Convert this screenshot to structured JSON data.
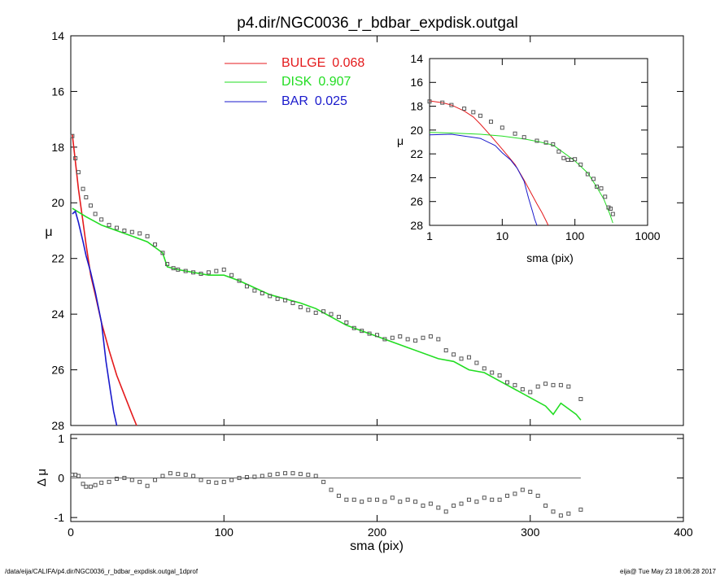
{
  "title": "p4.dir/NGC0036_r_bdbar_expdisk.outgal",
  "footer_left": "/data/eija/CALIFA/p4.dir/NGC0036_r_bdbar_expdisk.outgal_1dprof",
  "footer_right": "eija@  Tue May 23 18:06:28 2017",
  "colors": {
    "bulge": "#e41a1c",
    "disk": "#22dd22",
    "bar": "#1a1acc",
    "data": "#555555"
  },
  "chart_data": [
    {
      "id": "main",
      "type": "line",
      "xlabel": "",
      "ylabel": "μ",
      "xlim": [
        0,
        400
      ],
      "ylim": [
        28,
        14
      ],
      "yticks": [
        14,
        16,
        18,
        20,
        22,
        24,
        26,
        28
      ],
      "xticks": [
        0,
        100,
        200,
        300,
        400
      ],
      "legend": [
        {
          "name": "BULGE",
          "value": "0.068",
          "color": "#e41a1c"
        },
        {
          "name": "DISK",
          "value": "0.907",
          "color": "#22dd22"
        },
        {
          "name": "BAR",
          "value": "0.025",
          "color": "#1a1acc"
        }
      ],
      "series": [
        {
          "name": "BULGE",
          "x": [
            1,
            3,
            5,
            8,
            10,
            13,
            16,
            20,
            25,
            30,
            35,
            40,
            43
          ],
          "y": [
            17.55,
            18.5,
            19.5,
            20.7,
            21.5,
            22.6,
            23.3,
            24.3,
            25.3,
            26.2,
            26.9,
            27.6,
            28.0
          ]
        },
        {
          "name": "DISK",
          "x": [
            1,
            10,
            20,
            30,
            40,
            50,
            55,
            60,
            63,
            70,
            80,
            90,
            100,
            110,
            130,
            150,
            160,
            170,
            180,
            190,
            200,
            220,
            240,
            250,
            260,
            270,
            280,
            290,
            300,
            310,
            315,
            320,
            325,
            330,
            333
          ],
          "y": [
            20.2,
            20.5,
            20.8,
            21.0,
            21.2,
            21.4,
            21.6,
            21.8,
            22.3,
            22.4,
            22.5,
            22.6,
            22.6,
            22.8,
            23.3,
            23.6,
            23.8,
            24.1,
            24.4,
            24.6,
            24.8,
            25.2,
            25.6,
            25.7,
            26.0,
            26.1,
            26.4,
            26.7,
            27.0,
            27.3,
            27.6,
            27.2,
            27.4,
            27.6,
            27.8
          ]
        },
        {
          "name": "BAR",
          "x": [
            1,
            3,
            5,
            8,
            10,
            13,
            16,
            20,
            23,
            26,
            28,
            30
          ],
          "y": [
            20.4,
            20.3,
            20.7,
            21.4,
            21.9,
            22.5,
            23.2,
            24.3,
            25.7,
            26.8,
            27.5,
            28.0
          ]
        },
        {
          "name": "data",
          "x": [
            1,
            3,
            5,
            8,
            10,
            13,
            16,
            20,
            25,
            30,
            35,
            40,
            45,
            50,
            55,
            60,
            63,
            67,
            70,
            75,
            80,
            85,
            90,
            95,
            100,
            105,
            110,
            115,
            120,
            125,
            130,
            135,
            140,
            145,
            150,
            155,
            160,
            165,
            170,
            175,
            180,
            185,
            190,
            195,
            200,
            205,
            210,
            215,
            220,
            225,
            230,
            235,
            240,
            245,
            250,
            255,
            260,
            265,
            270,
            275,
            280,
            285,
            290,
            295,
            300,
            305,
            310,
            315,
            320,
            325,
            333
          ],
          "y": [
            17.6,
            18.4,
            18.9,
            19.5,
            19.8,
            20.1,
            20.4,
            20.6,
            20.8,
            20.9,
            21.0,
            21.05,
            21.1,
            21.2,
            21.5,
            21.8,
            22.2,
            22.35,
            22.4,
            22.45,
            22.5,
            22.55,
            22.5,
            22.45,
            22.4,
            22.6,
            22.8,
            23.0,
            23.15,
            23.25,
            23.35,
            23.45,
            23.5,
            23.6,
            23.75,
            23.85,
            23.95,
            23.9,
            24.0,
            24.1,
            24.3,
            24.5,
            24.6,
            24.7,
            24.75,
            24.9,
            24.85,
            24.8,
            24.9,
            24.95,
            24.85,
            24.8,
            24.9,
            25.3,
            25.45,
            25.6,
            25.55,
            25.75,
            25.95,
            26.1,
            26.2,
            26.45,
            26.55,
            26.7,
            26.8,
            26.6,
            26.5,
            26.55,
            26.55,
            26.6,
            27.05
          ]
        }
      ]
    },
    {
      "id": "inset",
      "type": "line",
      "xlabel": "sma (pix)",
      "ylabel": "μ",
      "xscale": "log",
      "xlim": [
        1,
        1000
      ],
      "ylim": [
        28,
        14
      ],
      "yticks": [
        14,
        16,
        18,
        20,
        22,
        24,
        26,
        28
      ],
      "xticks": [
        1,
        10,
        100,
        1000
      ],
      "series": [
        {
          "name": "BULGE",
          "x": [
            1,
            1.5,
            2,
            3,
            4,
            5,
            7,
            10,
            15,
            20,
            25,
            30,
            35,
            40,
            43
          ],
          "y": [
            17.55,
            17.7,
            17.9,
            18.4,
            18.9,
            19.5,
            20.5,
            21.6,
            22.9,
            24.2,
            25.3,
            26.2,
            26.9,
            27.6,
            28.0
          ]
        },
        {
          "name": "DISK",
          "x": [
            1,
            2,
            5,
            10,
            20,
            30,
            50,
            70,
            100,
            150,
            200,
            250,
            300,
            333
          ],
          "y": [
            20.2,
            20.25,
            20.35,
            20.5,
            20.75,
            20.95,
            21.25,
            21.9,
            22.6,
            23.6,
            24.8,
            25.8,
            27.0,
            27.8
          ]
        },
        {
          "name": "BAR",
          "x": [
            1,
            2,
            3,
            5,
            8,
            10,
            13,
            16,
            20,
            23,
            26,
            28,
            30
          ],
          "y": [
            20.4,
            20.35,
            20.5,
            20.7,
            21.3,
            21.9,
            22.5,
            23.2,
            24.3,
            25.7,
            26.8,
            27.5,
            28.0
          ]
        },
        {
          "name": "data",
          "x": [
            1,
            1.5,
            2,
            3,
            4,
            5,
            7,
            10,
            15,
            20,
            30,
            40,
            50,
            60,
            70,
            80,
            90,
            100,
            120,
            150,
            180,
            200,
            230,
            260,
            290,
            310,
            333
          ],
          "y": [
            17.6,
            17.7,
            17.9,
            18.2,
            18.5,
            18.8,
            19.3,
            19.8,
            20.3,
            20.6,
            20.9,
            21.05,
            21.2,
            21.8,
            22.35,
            22.5,
            22.5,
            22.45,
            22.9,
            23.7,
            24.1,
            24.75,
            24.9,
            25.6,
            26.5,
            26.6,
            27.05
          ]
        }
      ]
    },
    {
      "id": "residual",
      "type": "scatter",
      "xlabel": "sma (pix)",
      "ylabel": "Δ μ",
      "xlim": [
        0,
        400
      ],
      "ylim": [
        -1.1,
        1.1
      ],
      "yticks": [
        1,
        0,
        -1
      ],
      "xticks": [
        0,
        100,
        200,
        300,
        400
      ],
      "zero_line": true,
      "series": [
        {
          "name": "residual",
          "x": [
            1,
            3,
            5,
            8,
            10,
            13,
            16,
            20,
            25,
            30,
            35,
            40,
            45,
            50,
            55,
            60,
            65,
            70,
            75,
            80,
            85,
            90,
            95,
            100,
            105,
            110,
            115,
            120,
            125,
            130,
            135,
            140,
            145,
            150,
            155,
            160,
            165,
            170,
            175,
            180,
            185,
            190,
            195,
            200,
            205,
            210,
            215,
            220,
            225,
            230,
            235,
            240,
            245,
            250,
            255,
            260,
            265,
            270,
            275,
            280,
            285,
            290,
            295,
            300,
            305,
            310,
            315,
            320,
            325,
            333
          ],
          "y": [
            0.08,
            0.08,
            0.05,
            -0.15,
            -0.22,
            -0.22,
            -0.18,
            -0.12,
            -0.1,
            -0.02,
            0.0,
            -0.05,
            -0.1,
            -0.2,
            -0.05,
            0.05,
            0.12,
            0.1,
            0.08,
            0.05,
            -0.05,
            -0.1,
            -0.12,
            -0.1,
            -0.05,
            0.0,
            0.02,
            0.03,
            0.05,
            0.08,
            0.1,
            0.12,
            0.12,
            0.1,
            0.08,
            0.05,
            -0.1,
            -0.3,
            -0.45,
            -0.55,
            -0.55,
            -0.6,
            -0.55,
            -0.55,
            -0.6,
            -0.5,
            -0.6,
            -0.55,
            -0.6,
            -0.7,
            -0.65,
            -0.75,
            -0.85,
            -0.7,
            -0.65,
            -0.55,
            -0.6,
            -0.5,
            -0.55,
            -0.55,
            -0.45,
            -0.4,
            -0.3,
            -0.35,
            -0.45,
            -0.7,
            -0.85,
            -0.95,
            -0.9,
            -0.8
          ]
        }
      ]
    }
  ]
}
